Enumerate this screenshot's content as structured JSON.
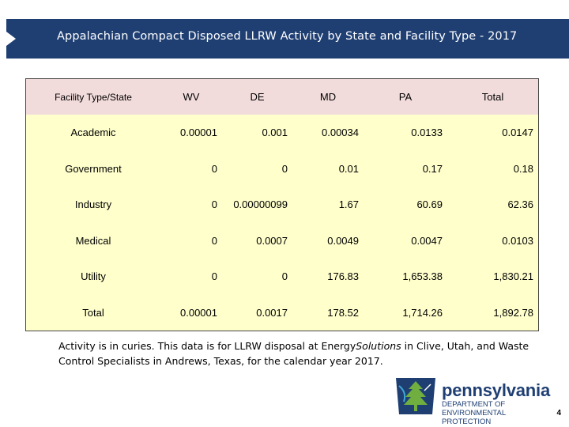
{
  "slide": {
    "title": "Appalachian Compact Disposed LLRW Activity by State and Facility Type - 2017",
    "page_number": "4"
  },
  "table": {
    "headers": [
      "Facility Type/State",
      "WV",
      "DE",
      "MD",
      "PA",
      "Total"
    ],
    "rows": [
      {
        "label": "Academic",
        "values": [
          "0.00001",
          "0.001",
          "0.00034",
          "0.0133",
          "0.0147"
        ]
      },
      {
        "label": "Government",
        "values": [
          "0",
          "0",
          "0.01",
          "0.17",
          "0.18"
        ]
      },
      {
        "label": "Industry",
        "values": [
          "0",
          "0.00000099",
          "1.67",
          "60.69",
          "62.36"
        ]
      },
      {
        "label": "Medical",
        "values": [
          "0",
          "0.0007",
          "0.0049",
          "0.0047",
          "0.0103"
        ]
      },
      {
        "label": "Utility",
        "values": [
          "0",
          "0",
          "176.83",
          "1,653.38",
          "1,830.21"
        ]
      },
      {
        "label": "Total",
        "values": [
          "0.00001",
          "0.0017",
          "178.52",
          "1,714.26",
          "1,892.78"
        ]
      }
    ]
  },
  "note": {
    "part1": "Activity is in curies.  This data is for LLRW disposal at Energy",
    "part2_italic": "Solutions",
    "part3": " in Clive, Utah, and Waste Control Specialists in Andrews, Texas, for the calendar year 2017."
  },
  "logo": {
    "icon": "keystone-tree-icon",
    "wordmark": "pennsylvania",
    "line1": "DEPARTMENT OF ENVIRONMENTAL",
    "line2": "PROTECTION"
  },
  "colors": {
    "title_bar": "#1f3f73",
    "header_bg": "#f2dcdb",
    "body_bg": "#ffffcc"
  }
}
